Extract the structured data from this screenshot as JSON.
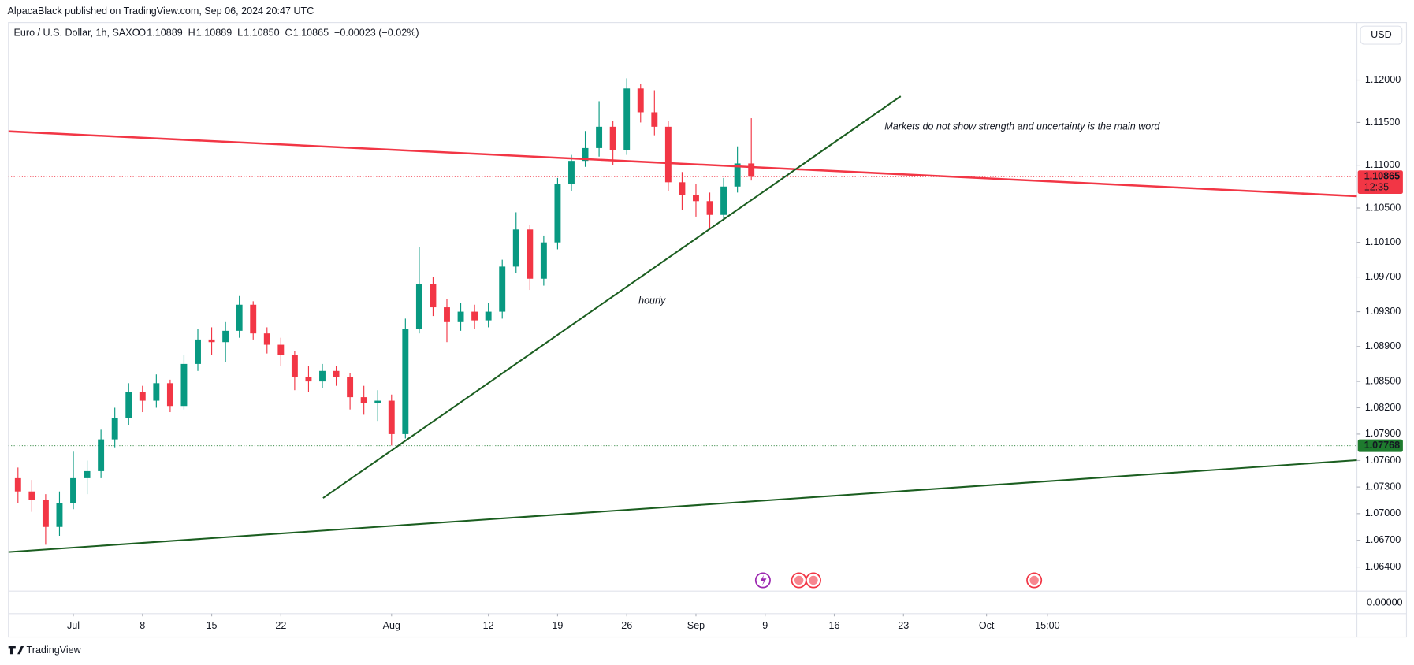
{
  "header": {
    "title": "AlpacaBlack published on TradingView.com, Sep 06, 2024 20:47 UTC"
  },
  "legend": {
    "symbol": "Euro / U.S. Dollar, 1h, SAXO",
    "ohlc": [
      {
        "key": "O",
        "value": "1.10889"
      },
      {
        "key": "H",
        "value": "1.10889"
      },
      {
        "key": "L",
        "value": "1.10850"
      },
      {
        "key": "C",
        "value": "1.10865"
      }
    ],
    "change": "−0.00023 (−0.02%)",
    "currency": "USD"
  },
  "chart_data": {
    "type": "candlestick",
    "log_scale": true,
    "grid": false,
    "up_color": "#089981",
    "down_color": "#f23645",
    "xlim": [
      -4.69,
      92.77
    ],
    "ylim": [
      1.0613,
      1.1268
    ],
    "xticks": [
      {
        "value": 0,
        "label": "Jul"
      },
      {
        "value": 5,
        "label": "8"
      },
      {
        "value": 10,
        "label": "15"
      },
      {
        "value": 15,
        "label": "22"
      },
      {
        "value": 23,
        "label": "Aug"
      },
      {
        "value": 30,
        "label": "12"
      },
      {
        "value": 35,
        "label": "19"
      },
      {
        "value": 40,
        "label": "26"
      },
      {
        "value": 45,
        "label": "Sep"
      },
      {
        "value": 50,
        "label": "9"
      },
      {
        "value": 55,
        "label": "16"
      },
      {
        "value": 60,
        "label": "23"
      },
      {
        "value": 66,
        "label": "Oct"
      },
      {
        "value": 70.4,
        "label": "15:00"
      }
    ],
    "yticks": [
      {
        "value": 1.12,
        "label": "1.12000"
      },
      {
        "value": 1.115,
        "label": "1.11500"
      },
      {
        "value": 1.11,
        "label": "1.11000"
      },
      {
        "value": 1.105,
        "label": "1.10500"
      },
      {
        "value": 1.101,
        "label": "1.10100"
      },
      {
        "value": 1.097,
        "label": "1.09700"
      },
      {
        "value": 1.093,
        "label": "1.09300"
      },
      {
        "value": 1.089,
        "label": "1.08900"
      },
      {
        "value": 1.085,
        "label": "1.08500"
      },
      {
        "value": 1.082,
        "label": "1.08200"
      },
      {
        "value": 1.079,
        "label": "1.07900"
      },
      {
        "value": 1.076,
        "label": "1.07600"
      },
      {
        "value": 1.073,
        "label": "1.07300"
      },
      {
        "value": 1.07,
        "label": "1.07000"
      },
      {
        "value": 1.067,
        "label": "1.06700"
      },
      {
        "value": 1.064,
        "label": "1.06400"
      }
    ],
    "lower_pane_label": "0.00000",
    "x": [
      -4,
      -3,
      -2,
      -1,
      0,
      1,
      2,
      3,
      4,
      5,
      6,
      7,
      8,
      9,
      10,
      11,
      12,
      13,
      14,
      15,
      16,
      17,
      18,
      19,
      20,
      21,
      22,
      23,
      24,
      25,
      26,
      27,
      28,
      29,
      30,
      31,
      32,
      33,
      34,
      35,
      36,
      37,
      38,
      39,
      40,
      41,
      42,
      43,
      44,
      45,
      46,
      47,
      48,
      49
    ],
    "open": [
      1.074,
      1.0725,
      1.0715,
      1.0685,
      1.0712,
      1.074,
      1.0748,
      1.0784,
      1.0808,
      1.0838,
      1.0828,
      1.0848,
      1.0822,
      1.087,
      1.0898,
      1.0895,
      1.0908,
      1.0938,
      1.0905,
      1.0892,
      1.088,
      1.0855,
      1.085,
      1.0862,
      1.0855,
      1.0832,
      1.0825,
      1.0828,
      1.079,
      1.091,
      1.0962,
      1.0935,
      1.0918,
      1.093,
      1.092,
      1.093,
      1.0982,
      1.1025,
      1.0968,
      1.101,
      1.1078,
      1.1105,
      1.112,
      1.1145,
      1.1118,
      1.119,
      1.1162,
      1.1145,
      1.108,
      1.1065,
      1.1058,
      1.1042,
      1.1075,
      1.1102
    ],
    "high": [
      1.0752,
      1.0738,
      1.0722,
      1.0725,
      1.077,
      1.076,
      1.0795,
      1.082,
      1.0848,
      1.0845,
      1.0858,
      1.0852,
      1.088,
      1.091,
      1.0912,
      1.0918,
      1.0948,
      1.0942,
      1.0912,
      1.09,
      1.0885,
      1.0868,
      1.087,
      1.0868,
      1.086,
      1.0845,
      1.084,
      1.0835,
      1.0922,
      1.1005,
      1.097,
      1.0945,
      1.094,
      1.0938,
      1.094,
      1.099,
      1.1045,
      1.103,
      1.1018,
      1.1085,
      1.1112,
      1.114,
      1.1175,
      1.1152,
      1.1202,
      1.1195,
      1.1188,
      1.1152,
      1.1092,
      1.1078,
      1.1068,
      1.1085,
      1.1122,
      1.1155
    ],
    "low": [
      1.0712,
      1.0702,
      1.0665,
      1.0675,
      1.0705,
      1.0722,
      1.074,
      1.0775,
      1.08,
      1.0815,
      1.082,
      1.0815,
      1.0818,
      1.0862,
      1.088,
      1.0872,
      1.09,
      1.0898,
      1.0882,
      1.0868,
      1.084,
      1.0838,
      1.0842,
      1.0845,
      1.0818,
      1.0812,
      1.0805,
      1.0777,
      1.0785,
      1.0905,
      1.0925,
      1.0895,
      1.0908,
      1.091,
      1.0912,
      1.0922,
      1.0975,
      1.0955,
      1.096,
      1.1002,
      1.107,
      1.1098,
      1.111,
      1.11,
      1.1112,
      1.115,
      1.1135,
      1.107,
      1.1048,
      1.104,
      1.1025,
      1.1035,
      1.1068,
      1.1082
    ],
    "close": [
      1.0725,
      1.0715,
      1.0685,
      1.0712,
      1.074,
      1.0748,
      1.0784,
      1.0808,
      1.0838,
      1.0828,
      1.0848,
      1.0822,
      1.087,
      1.0898,
      1.0895,
      1.0908,
      1.0938,
      1.0905,
      1.0892,
      1.088,
      1.0855,
      1.085,
      1.0862,
      1.0855,
      1.0832,
      1.0825,
      1.0828,
      1.079,
      1.091,
      1.0962,
      1.0935,
      1.0918,
      1.093,
      1.092,
      1.093,
      1.0982,
      1.1025,
      1.0968,
      1.101,
      1.1078,
      1.1105,
      1.112,
      1.1145,
      1.1118,
      1.119,
      1.1162,
      1.1145,
      1.108,
      1.1065,
      1.1058,
      1.1042,
      1.1075,
      1.1102,
      1.10865
    ],
    "lines": [
      {
        "color": "#f23645",
        "x": [
          -4.69,
          92.77
        ],
        "y": [
          1.11396,
          1.10638
        ]
      },
      {
        "color": "#1b5e20",
        "x": [
          18.05,
          59.8
        ],
        "y": [
          1.07176,
          1.11809
        ]
      },
      {
        "color": "#1b5e20",
        "x": [
          -4.69,
          92.77
        ],
        "y": [
          1.06568,
          1.07604
        ]
      }
    ],
    "levels": [
      {
        "value": 1.10865,
        "color": "#f23645",
        "sublabel": "12:35"
      },
      {
        "value": 1.07768,
        "color": "#1e7b2e"
      }
    ],
    "annotations": [
      {
        "text": "Markets do not show strength and uncertainty is the main word",
        "color": "#d32f2f"
      },
      {
        "text": "hourly",
        "color": "#131722"
      }
    ]
  },
  "footer": {
    "brand": "TradingView"
  }
}
